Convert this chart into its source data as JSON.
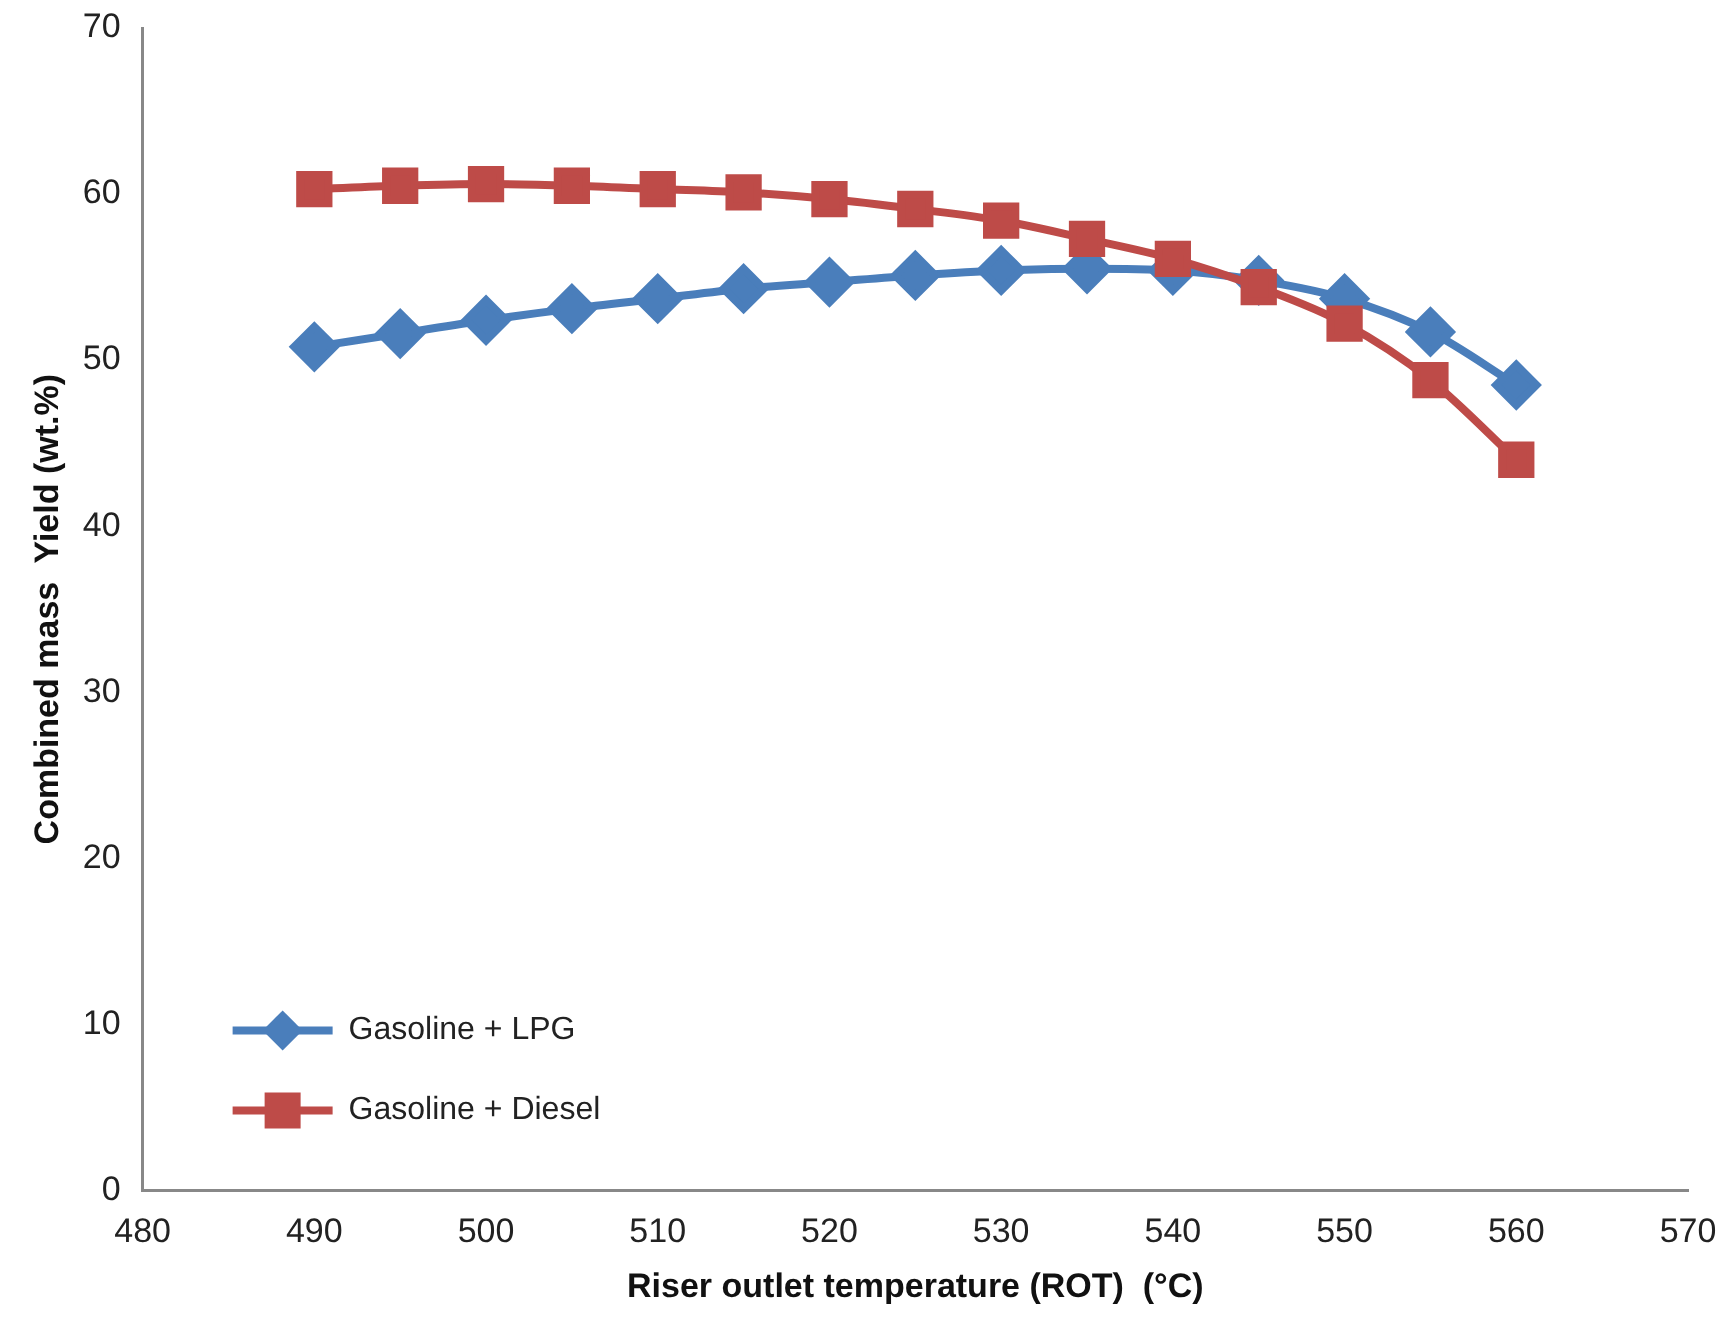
{
  "chart_data": {
    "type": "line",
    "xlabel": "Riser outlet temperature (ROT)  (°C)",
    "ylabel": "Combined mass  Yield (wt.%)",
    "x": [
      490,
      495,
      500,
      505,
      510,
      515,
      520,
      525,
      530,
      535,
      540,
      545,
      550,
      555,
      560
    ],
    "series": [
      {
        "name": "Gasoline + LPG",
        "color": "#4a7ebb",
        "marker": "diamond",
        "values": [
          50.8,
          51.6,
          52.4,
          53.1,
          53.7,
          54.3,
          54.7,
          55.1,
          55.4,
          55.5,
          55.4,
          54.8,
          53.7,
          51.7,
          48.5
        ]
      },
      {
        "name": "Gasoline + Diesel",
        "color": "#be4b48",
        "marker": "square",
        "values": [
          60.3,
          60.5,
          60.6,
          60.5,
          60.3,
          60.1,
          59.7,
          59.1,
          58.4,
          57.3,
          56.1,
          54.4,
          52.2,
          48.8,
          44.0
        ]
      }
    ],
    "xlim": [
      480,
      570
    ],
    "xticks": [
      480,
      490,
      500,
      510,
      520,
      530,
      540,
      550,
      560,
      570
    ],
    "ylim": [
      0,
      70
    ],
    "yticks": [
      0,
      10,
      20,
      30,
      40,
      50,
      60,
      70
    ],
    "grid": false,
    "legend": "bottom left"
  }
}
